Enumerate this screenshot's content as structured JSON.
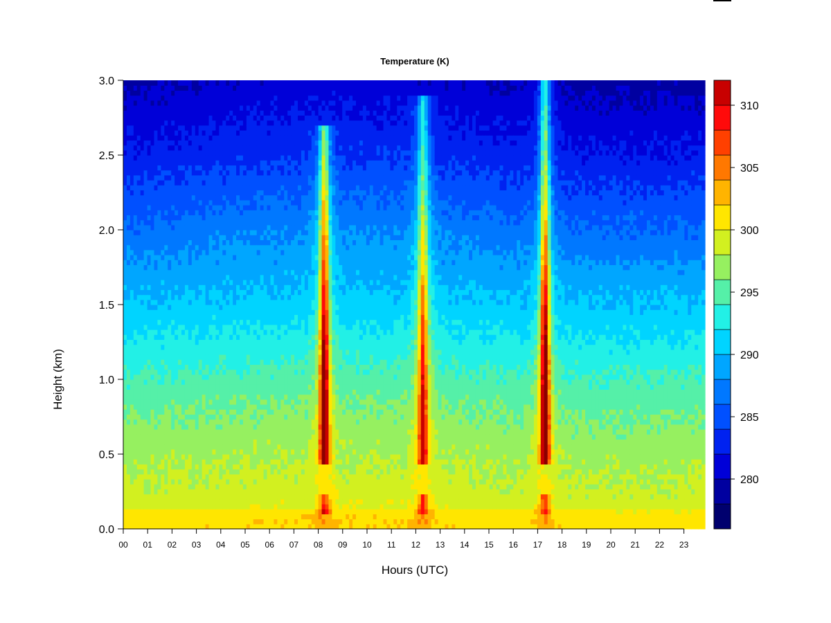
{
  "chart_data": {
    "type": "heatmap",
    "title": "Temperature (K)",
    "xlabel": "Hours (UTC)",
    "ylabel": "Height (km)",
    "x_ticks": [
      "00",
      "01",
      "02",
      "03",
      "04",
      "05",
      "06",
      "07",
      "08",
      "09",
      "10",
      "11",
      "12",
      "13",
      "14",
      "15",
      "16",
      "17",
      "18",
      "19",
      "20",
      "21",
      "22",
      "23"
    ],
    "y_ticks": [
      "0.0",
      "0.5",
      "1.0",
      "1.5",
      "2.0",
      "2.5",
      "3.0"
    ],
    "xlim": [
      0,
      24
    ],
    "ylim": [
      0.0,
      3.0
    ],
    "colorbar": {
      "levels": [
        276,
        278,
        280,
        282,
        284,
        286,
        288,
        290,
        292,
        294,
        296,
        298,
        300,
        302,
        304,
        306,
        308,
        310,
        312
      ],
      "ticks": [
        "280",
        "285",
        "290",
        "295",
        "300",
        "305",
        "310"
      ],
      "colors": [
        "#00006e",
        "#0000a0",
        "#0000d8",
        "#0022f0",
        "#0050ff",
        "#0078ff",
        "#00a6ff",
        "#00d4ff",
        "#22f0e6",
        "#55f0a8",
        "#96f060",
        "#d2f020",
        "#ffe600",
        "#ffb400",
        "#ff7800",
        "#ff4000",
        "#ff0a0a",
        "#c80000",
        "#8c0000"
      ]
    },
    "background_profile": [
      {
        "height_km": 0.0,
        "temperature_k": 300
      },
      {
        "height_km": 0.3,
        "temperature_k": 298.5
      },
      {
        "height_km": 0.7,
        "temperature_k": 296.5
      },
      {
        "height_km": 1.0,
        "temperature_k": 294.5
      },
      {
        "height_km": 1.5,
        "temperature_k": 290.5
      },
      {
        "height_km": 2.0,
        "temperature_k": 287
      },
      {
        "height_km": 2.5,
        "temperature_k": 283
      },
      {
        "height_km": 3.0,
        "temperature_k": 280
      }
    ],
    "warm_columns": [
      {
        "center_hour": 8.25,
        "bottom_km": 0.45,
        "top_km": 2.7,
        "peak_km": 1.2,
        "peak_temperature_k": 309
      },
      {
        "center_hour": 12.3,
        "bottom_km": 0.45,
        "top_km": 2.9,
        "peak_km": 1.1,
        "peak_temperature_k": 305
      },
      {
        "center_hour": 17.3,
        "bottom_km": 0.45,
        "top_km": 3.0,
        "peak_km": 1.2,
        "peak_temperature_k": 310
      }
    ]
  }
}
